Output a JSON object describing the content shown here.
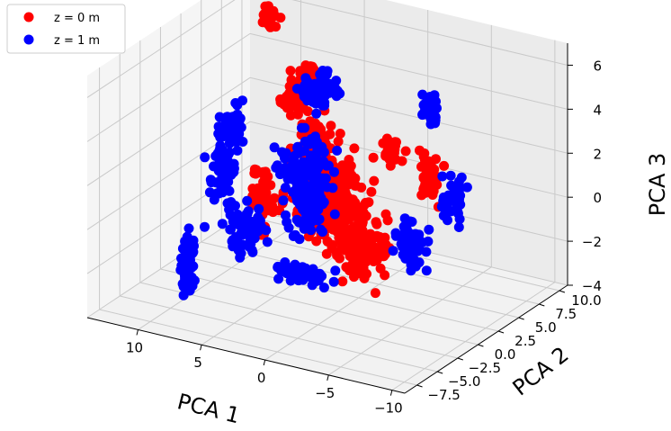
{
  "chart_data": {
    "type": "scatter",
    "projection": "3d",
    "grid": true,
    "legend_placement": "top-left",
    "xlabel": "PCA 1",
    "ylabel": "PCA 2",
    "zlabel": "PCA 3",
    "xlim": [
      -11,
      14
    ],
    "ylim": [
      -9,
      11
    ],
    "zlim": [
      -4,
      7
    ],
    "x_ticks": [
      "−10",
      "−5",
      "0",
      "5",
      "10"
    ],
    "y_ticks": [
      "−7.5",
      "−5.0",
      "−2.5",
      "0.0",
      "2.5",
      "5.0",
      "7.5",
      "10.0"
    ],
    "z_ticks": [
      "−4",
      "−2",
      "0",
      "2",
      "4",
      "6"
    ],
    "series": [
      {
        "name": "z = 0 m",
        "color": "#ff0000",
        "clusters": [
          {
            "x": 0.5,
            "y": 0.0,
            "z": 1.0,
            "sx": 1.6,
            "sy": 1.5,
            "sz": 1.3,
            "n": 240
          },
          {
            "x": -2.5,
            "y": -1.0,
            "z": -0.5,
            "sx": 1.3,
            "sy": 1.0,
            "sz": 0.9,
            "n": 130
          },
          {
            "x": 2.5,
            "y": 1.0,
            "z": 2.5,
            "sx": 1.0,
            "sy": 1.0,
            "sz": 1.2,
            "n": 90
          },
          {
            "x": 4.5,
            "y": 3.0,
            "z": 5.0,
            "sx": 0.6,
            "sy": 0.6,
            "sz": 0.6,
            "n": 45
          },
          {
            "x": -5.5,
            "y": 2.5,
            "z": 2.0,
            "sx": 0.5,
            "sy": 0.5,
            "sz": 0.8,
            "n": 40
          },
          {
            "x": -2.0,
            "y": 3.5,
            "z": 2.8,
            "sx": 0.5,
            "sy": 0.5,
            "sz": 0.4,
            "n": 28
          },
          {
            "x": 9.5,
            "y": 6.5,
            "z": 6.5,
            "sx": 0.4,
            "sy": 0.3,
            "sz": 0.3,
            "n": 25
          },
          {
            "x": 7.5,
            "y": 2.5,
            "z": -0.5,
            "sx": 0.7,
            "sy": 0.5,
            "sz": 1.0,
            "n": 45
          },
          {
            "x": 7.5,
            "y": 6.0,
            "z": 3.0,
            "sx": 0.6,
            "sy": 0.4,
            "sz": 0.4,
            "n": 30
          }
        ]
      },
      {
        "name": "z = 1 m",
        "color": "#0000ff",
        "clusters": [
          {
            "x": 3.5,
            "y": 1.5,
            "z": 1.0,
            "sx": 1.2,
            "sy": 1.2,
            "sz": 1.3,
            "n": 160
          },
          {
            "x": -8.5,
            "y": 1.0,
            "z": 2.0,
            "sx": 0.6,
            "sy": 0.5,
            "sz": 0.8,
            "n": 45
          },
          {
            "x": -6.0,
            "y": -0.5,
            "z": 0.0,
            "sx": 0.8,
            "sy": 0.5,
            "sz": 0.8,
            "n": 60
          },
          {
            "x": -5.0,
            "y": 3.5,
            "z": 5.0,
            "sx": 0.4,
            "sy": 0.3,
            "sz": 0.6,
            "n": 35
          },
          {
            "x": 4.0,
            "y": 4.0,
            "z": 4.5,
            "sx": 0.9,
            "sy": 0.6,
            "sz": 0.6,
            "n": 70
          },
          {
            "x": 0.5,
            "y": -3.5,
            "z": -1.5,
            "sx": 1.5,
            "sy": 0.5,
            "sz": 0.3,
            "n": 60
          },
          {
            "x": 6.5,
            "y": -1.0,
            "z": -1.0,
            "sx": 1.0,
            "sy": 0.6,
            "sz": 0.8,
            "n": 60
          },
          {
            "x": 11.0,
            "y": 3.0,
            "z": 0.0,
            "sx": 0.6,
            "sy": 0.6,
            "sz": 1.4,
            "n": 75
          },
          {
            "x": 12.0,
            "y": 5.5,
            "z": 1.5,
            "sx": 0.5,
            "sy": 0.8,
            "sz": 0.6,
            "n": 40
          },
          {
            "x": 8.0,
            "y": -6.0,
            "z": -1.5,
            "sx": 0.4,
            "sy": 0.3,
            "sz": 0.9,
            "n": 45
          }
        ]
      }
    ]
  }
}
